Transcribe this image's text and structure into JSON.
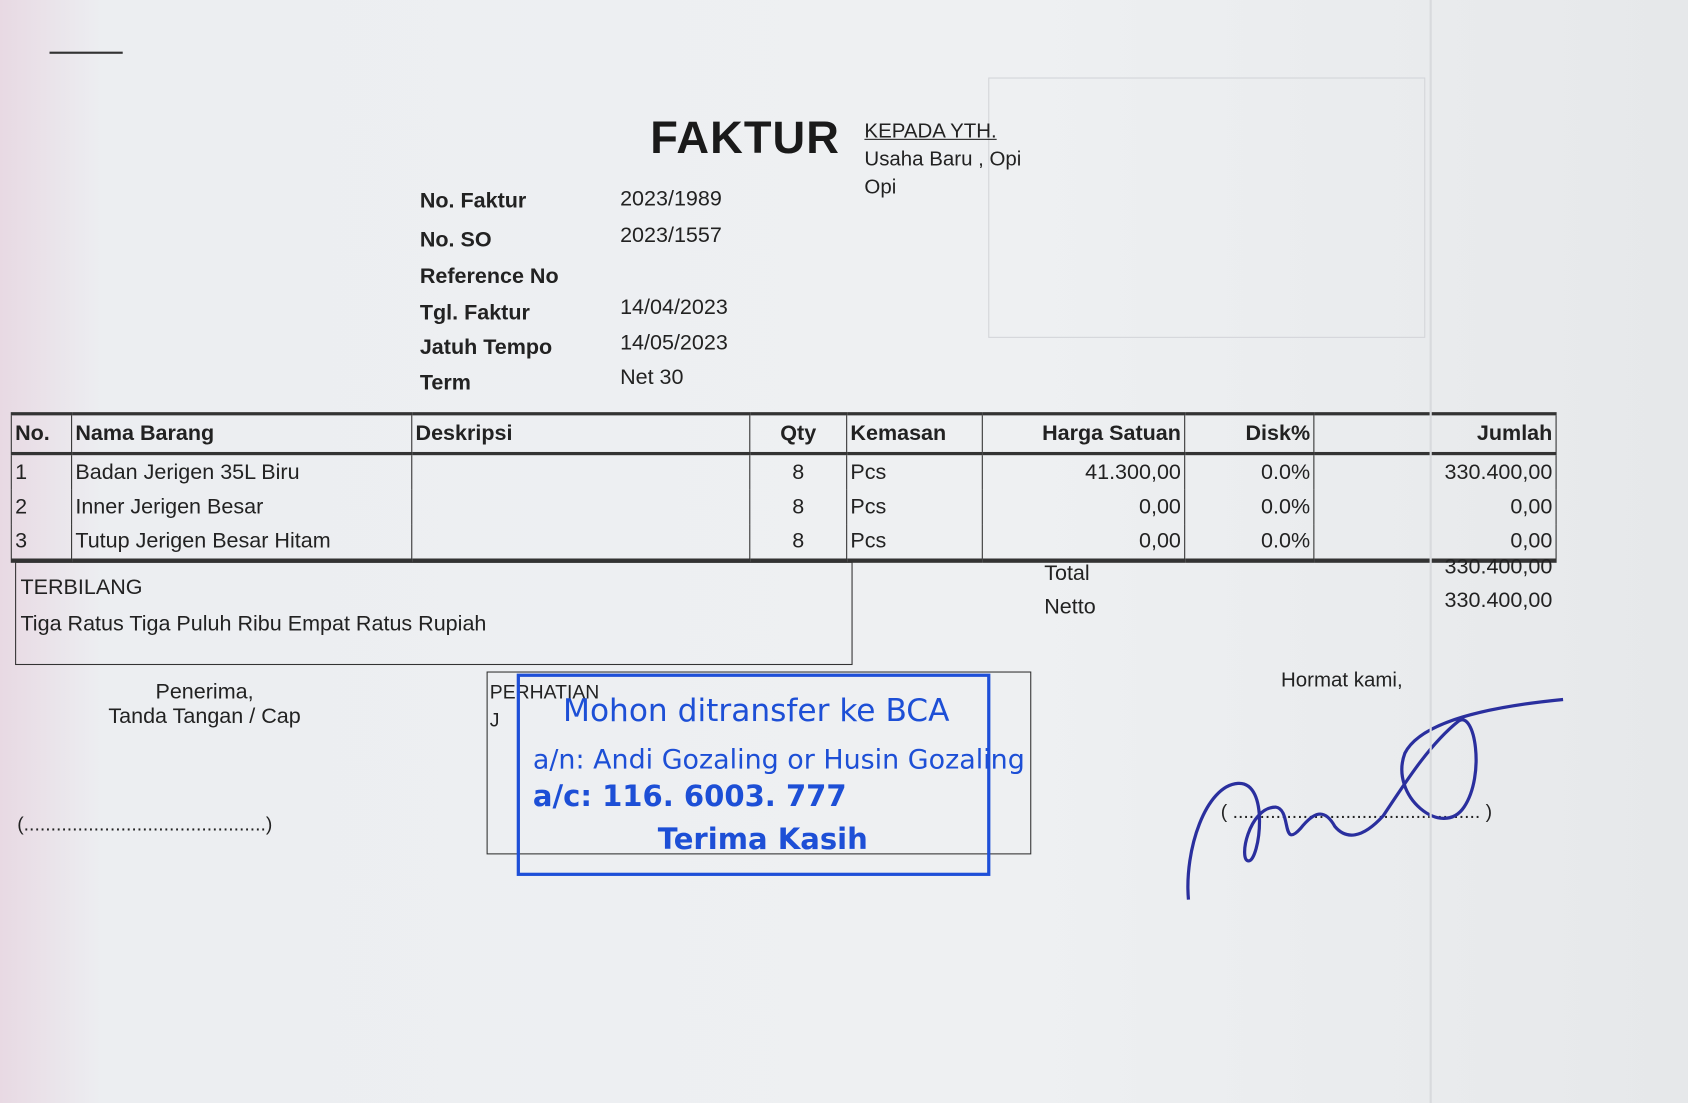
{
  "title": "FAKTUR",
  "recipient": {
    "heading": "KEPADA YTH.",
    "name": "Usaha Baru , Opi",
    "city": "Opi"
  },
  "info": [
    {
      "label": "No. Faktur",
      "value": "2023/1989"
    },
    {
      "label": "No. SO",
      "value": "2023/1557"
    },
    {
      "label": "Reference No",
      "value": ""
    },
    {
      "label": "Tgl. Faktur",
      "value": "14/04/2023"
    },
    {
      "label": "Jatuh Tempo",
      "value": "14/05/2023"
    },
    {
      "label": "Term",
      "value": "Net 30"
    }
  ],
  "table": {
    "headers": [
      "No.",
      "Nama Barang",
      "Deskripsi",
      "Qty",
      "Kemasan",
      "Harga Satuan",
      "Disk%",
      "Jumlah"
    ],
    "rows": [
      [
        "1",
        "Badan Jerigen 35L Biru",
        "",
        "8",
        "Pcs",
        "41.300,00",
        "0.0%",
        "330.400,00"
      ],
      [
        "2",
        "Inner Jerigen Besar",
        "",
        "8",
        "Pcs",
        "0,00",
        "0.0%",
        "0,00"
      ],
      [
        "3",
        "Tutup Jerigen Besar Hitam",
        "",
        "8",
        "Pcs",
        "0,00",
        "0.0%",
        "0,00"
      ]
    ]
  },
  "terbilang": {
    "label": "TERBILANG",
    "text": "Tiga Ratus Tiga Puluh Ribu Empat Ratus Rupiah"
  },
  "totals": {
    "total_label": "Total",
    "total": "330.400,00",
    "netto_label": "Netto",
    "netto": "330.400,00"
  },
  "receiver": {
    "line1": "Penerima,",
    "line2": "Tanda Tangan / Cap",
    "sign": "(.............................................)"
  },
  "perhatian": {
    "label": "PERHATIAN",
    "extra": "J"
  },
  "stamp": {
    "line1": "Mohon ditransfer ke BCA",
    "line2": "a/n: Andi Gozaling or Husin Gozaling",
    "line3": "a/c: 116. 6003. 777",
    "line4": "Terima Kasih",
    "color": "#1d4fd6"
  },
  "sender": {
    "label": "Hormat kami,",
    "sign": "( .............................................. )"
  }
}
